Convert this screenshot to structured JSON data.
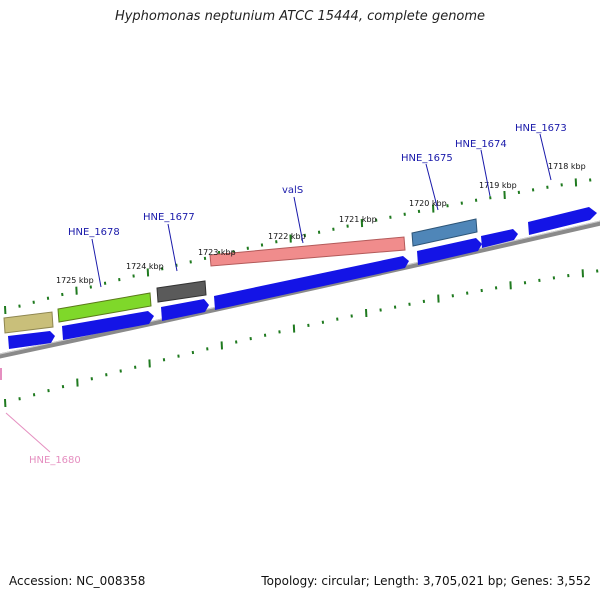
{
  "title": "Hyphomonas neptunium ATCC 15444, complete genome",
  "footer": {
    "accession": "Accession: NC_008358",
    "stats": "Topology: circular; Length: 3,705,021 bp; Genes: 3,552"
  },
  "colors": {
    "backbone": "#8a8a8a",
    "tick": "#1f7a1f",
    "cds": "#1414e6",
    "label": "#1a1aaa",
    "gene_other_label": "#e58fc0"
  },
  "scale_labels": [
    "1725 kbp",
    "1724 kbp",
    "1723 kbp",
    "1722 kbp",
    "1721 kbp",
    "1720 kbp",
    "1719 kbp",
    "1718 kbp"
  ],
  "gene_labels": [
    "HNE_1678",
    "HNE_1677",
    "valS",
    "HNE_1675",
    "HNE_1674",
    "HNE_1673"
  ],
  "other_label": "HNE_1680",
  "feature_colors": [
    "#c9bf7a",
    "#7fd82a",
    "#5a5a5a",
    "#f08c8c",
    "#4f86b8"
  ]
}
